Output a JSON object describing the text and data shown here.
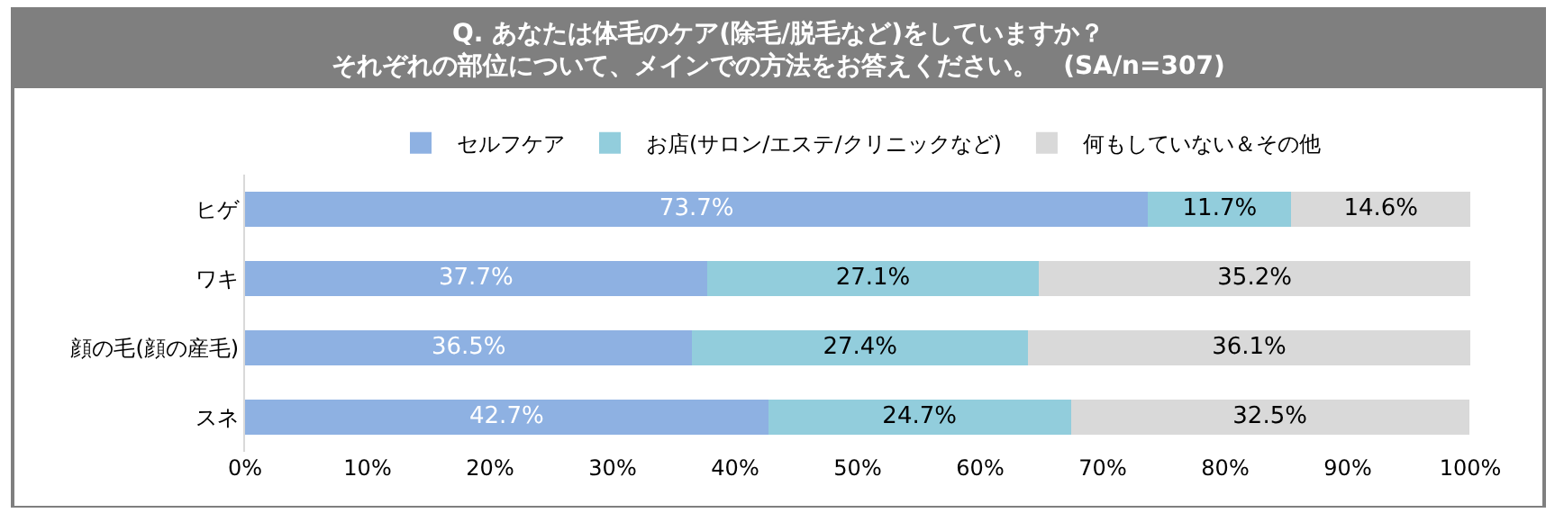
{
  "chart_data": {
    "type": "bar",
    "orientation": "horizontal",
    "stacked": true,
    "title": "Q. あなたは体毛のケア(除毛/脱毛など)をしていますか？",
    "subtitle": "それぞれの部位について、メインでの方法をお答えください。　(SA/n=307)",
    "categories": [
      "ヒゲ",
      "ワキ",
      "顔の毛(顔の産毛)",
      "スネ"
    ],
    "series": [
      {
        "name": "セルフケア",
        "color": "#8eb1e2",
        "values": [
          73.7,
          37.7,
          36.5,
          42.7
        ],
        "value_labels": [
          "73.7%",
          "37.7%",
          "36.5%",
          "42.7%"
        ]
      },
      {
        "name": "お店(サロン/エステ/クリニックなど)",
        "color": "#92cddc",
        "values": [
          11.7,
          27.1,
          27.4,
          24.7
        ],
        "value_labels": [
          "11.7%",
          "27.1%",
          "27.4%",
          "24.7%"
        ]
      },
      {
        "name": "何もしていない＆その他",
        "color": "#d9d9d9",
        "values": [
          14.6,
          35.2,
          36.1,
          32.5
        ],
        "value_labels": [
          "14.6%",
          "35.2%",
          "36.1%",
          "32.5%"
        ]
      }
    ],
    "xlim": [
      0,
      100
    ],
    "xticks": [
      {
        "value": 0,
        "label": "0%"
      },
      {
        "value": 10,
        "label": "10%"
      },
      {
        "value": 20,
        "label": "20%"
      },
      {
        "value": 30,
        "label": "30%"
      },
      {
        "value": 40,
        "label": "40%"
      },
      {
        "value": 50,
        "label": "50%"
      },
      {
        "value": 60,
        "label": "60%"
      },
      {
        "value": 70,
        "label": "70%"
      },
      {
        "value": 80,
        "label": "80%"
      },
      {
        "value": 90,
        "label": "90%"
      },
      {
        "value": 100,
        "label": "100%"
      }
    ],
    "grid": false,
    "legend": "top"
  }
}
